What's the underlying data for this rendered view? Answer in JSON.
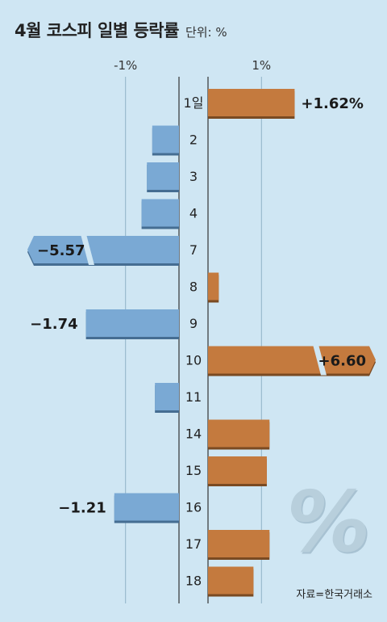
{
  "header": {
    "title": "4월 코스피 일별 등락률",
    "unit": "단위: %"
  },
  "footer": {
    "source": "자료=한국거래소"
  },
  "watermark": "%",
  "colors": {
    "positive": "#c47a3e",
    "negative": "#7aa9d4",
    "background": "#cfe6f3"
  },
  "chart_data": {
    "type": "bar",
    "orientation": "horizontal",
    "title": "4월 코스피 일별 등락률",
    "unit": "%",
    "axis_tick_labels": [
      "-1%",
      "1%"
    ],
    "axis_ticks": [
      -1,
      1
    ],
    "categories": [
      "1일",
      "2",
      "3",
      "4",
      "7",
      "8",
      "9",
      "10",
      "11",
      "14",
      "15",
      "16",
      "17",
      "18"
    ],
    "values": [
      1.62,
      -0.5,
      -0.6,
      -0.7,
      -5.57,
      0.2,
      -1.74,
      6.6,
      -0.45,
      1.15,
      1.1,
      -1.21,
      1.15,
      0.85
    ],
    "value_labels": [
      "+1.62%",
      "",
      "",
      "",
      "−5.57",
      "",
      "−1.74",
      "+6.60",
      "",
      "",
      "",
      "−1.21",
      "",
      ""
    ],
    "broken_bars": [
      "7",
      "10"
    ],
    "grid": true
  }
}
